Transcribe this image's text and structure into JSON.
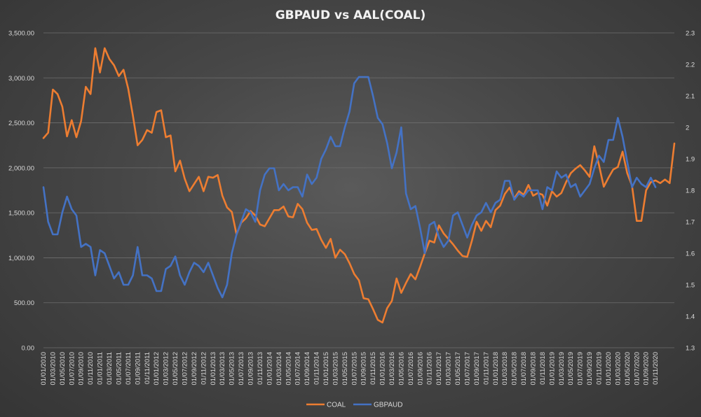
{
  "chart_data": {
    "type": "line",
    "title": "GBPAUD vs AAL(COAL)",
    "x_start": "2010-01",
    "x_step_months": 1,
    "x_tick_every_months": 2,
    "x_tick_labels": [
      "01/01/2010",
      "01/03/2010",
      "01/05/2010",
      "01/07/2010",
      "01/09/2010",
      "01/11/2010",
      "01/01/2011",
      "01/03/2011",
      "01/05/2011",
      "01/07/2011",
      "01/09/2011",
      "01/11/2011",
      "01/01/2012",
      "01/03/2012",
      "01/05/2012",
      "01/07/2012",
      "01/09/2012",
      "01/11/2012",
      "01/01/2013",
      "01/03/2013",
      "01/05/2013",
      "01/07/2013",
      "01/09/2013",
      "01/11/2013",
      "01/01/2014",
      "01/03/2014",
      "01/05/2014",
      "01/07/2014",
      "01/09/2014",
      "01/11/2014",
      "01/01/2015",
      "01/03/2015",
      "01/05/2015",
      "01/07/2015",
      "01/09/2015",
      "01/11/2015",
      "01/01/2016",
      "01/03/2016",
      "01/05/2016",
      "01/07/2016",
      "01/09/2016",
      "01/11/2016",
      "01/01/2017",
      "01/03/2017",
      "01/05/2017",
      "01/07/2017",
      "01/09/2017",
      "01/11/2017",
      "01/01/2018",
      "01/03/2018",
      "01/05/2018",
      "01/07/2018",
      "01/09/2018",
      "01/11/2018",
      "01/01/2019",
      "01/03/2019",
      "01/05/2019",
      "01/07/2019",
      "01/09/2019",
      "01/11/2019",
      "01/01/2020",
      "01/03/2020",
      "01/05/2020",
      "01/07/2020",
      "01/09/2020",
      "01/11/2020"
    ],
    "y_left": {
      "ylim": [
        0,
        3500
      ],
      "ticks": [
        "0.00",
        "500.00",
        "1,000.00",
        "1,500.00",
        "2,000.00",
        "2,500.00",
        "3,000.00",
        "3,500.00"
      ]
    },
    "y_right": {
      "ylim": [
        1.3,
        2.3
      ],
      "ticks": [
        "1.3",
        "1.4",
        "1.5",
        "1.6",
        "1.7",
        "1.8",
        "1.9",
        "2",
        "2.1",
        "2.2",
        "2.3"
      ]
    },
    "legend": "bottom-center",
    "grid": "horizontal",
    "series": [
      {
        "name": "COAL",
        "axis": "left",
        "color": "#ed7d31",
        "values": [
          2330,
          2390,
          2870,
          2820,
          2680,
          2350,
          2530,
          2340,
          2520,
          2900,
          2820,
          3330,
          3060,
          3330,
          3210,
          3140,
          3020,
          3090,
          2880,
          2580,
          2250,
          2310,
          2420,
          2390,
          2620,
          2640,
          2340,
          2360,
          1960,
          2080,
          1880,
          1740,
          1820,
          1900,
          1740,
          1900,
          1890,
          1920,
          1690,
          1560,
          1510,
          1260,
          1390,
          1440,
          1520,
          1470,
          1370,
          1350,
          1440,
          1530,
          1530,
          1570,
          1460,
          1450,
          1600,
          1540,
          1390,
          1310,
          1320,
          1200,
          1110,
          1210,
          1000,
          1090,
          1040,
          940,
          820,
          750,
          550,
          540,
          430,
          310,
          280,
          440,
          520,
          770,
          610,
          720,
          820,
          760,
          900,
          1050,
          1190,
          1170,
          1360,
          1270,
          1210,
          1150,
          1080,
          1020,
          1010,
          1190,
          1400,
          1300,
          1410,
          1340,
          1530,
          1580,
          1710,
          1780,
          1660,
          1740,
          1700,
          1810,
          1690,
          1720,
          1700,
          1580,
          1740,
          1680,
          1720,
          1840,
          1940,
          1990,
          2030,
          1970,
          1900,
          2240,
          2030,
          1790,
          1890,
          1980,
          2010,
          2180,
          1940,
          1800,
          1410,
          1410,
          1750,
          1840,
          1860,
          1830,
          1870,
          1830,
          2270
        ]
      },
      {
        "name": "GBPAUD",
        "axis": "right",
        "color": "#4472c4",
        "values": [
          1.81,
          1.7,
          1.66,
          1.66,
          1.73,
          1.78,
          1.74,
          1.72,
          1.62,
          1.63,
          1.62,
          1.53,
          1.61,
          1.6,
          1.56,
          1.52,
          1.54,
          1.5,
          1.5,
          1.53,
          1.62,
          1.53,
          1.53,
          1.52,
          1.48,
          1.48,
          1.55,
          1.56,
          1.59,
          1.53,
          1.5,
          1.54,
          1.57,
          1.56,
          1.54,
          1.57,
          1.53,
          1.49,
          1.46,
          1.5,
          1.6,
          1.66,
          1.7,
          1.74,
          1.73,
          1.7,
          1.8,
          1.85,
          1.87,
          1.87,
          1.8,
          1.82,
          1.8,
          1.81,
          1.81,
          1.78,
          1.85,
          1.82,
          1.84,
          1.9,
          1.93,
          1.97,
          1.94,
          1.94,
          2.0,
          2.05,
          2.14,
          2.16,
          2.16,
          2.16,
          2.1,
          2.03,
          2.01,
          1.95,
          1.87,
          1.92,
          2.0,
          1.79,
          1.74,
          1.75,
          1.68,
          1.6,
          1.69,
          1.7,
          1.65,
          1.62,
          1.64,
          1.72,
          1.73,
          1.69,
          1.65,
          1.69,
          1.72,
          1.73,
          1.76,
          1.73,
          1.76,
          1.77,
          1.83,
          1.83,
          1.77,
          1.79,
          1.78,
          1.8,
          1.8,
          1.8,
          1.74,
          1.81,
          1.8,
          1.86,
          1.84,
          1.85,
          1.81,
          1.82,
          1.78,
          1.8,
          1.82,
          1.87,
          1.91,
          1.89,
          1.96,
          1.96,
          2.03,
          1.97,
          1.89,
          1.81,
          1.84,
          1.82,
          1.81,
          1.84,
          1.81
        ]
      }
    ]
  }
}
